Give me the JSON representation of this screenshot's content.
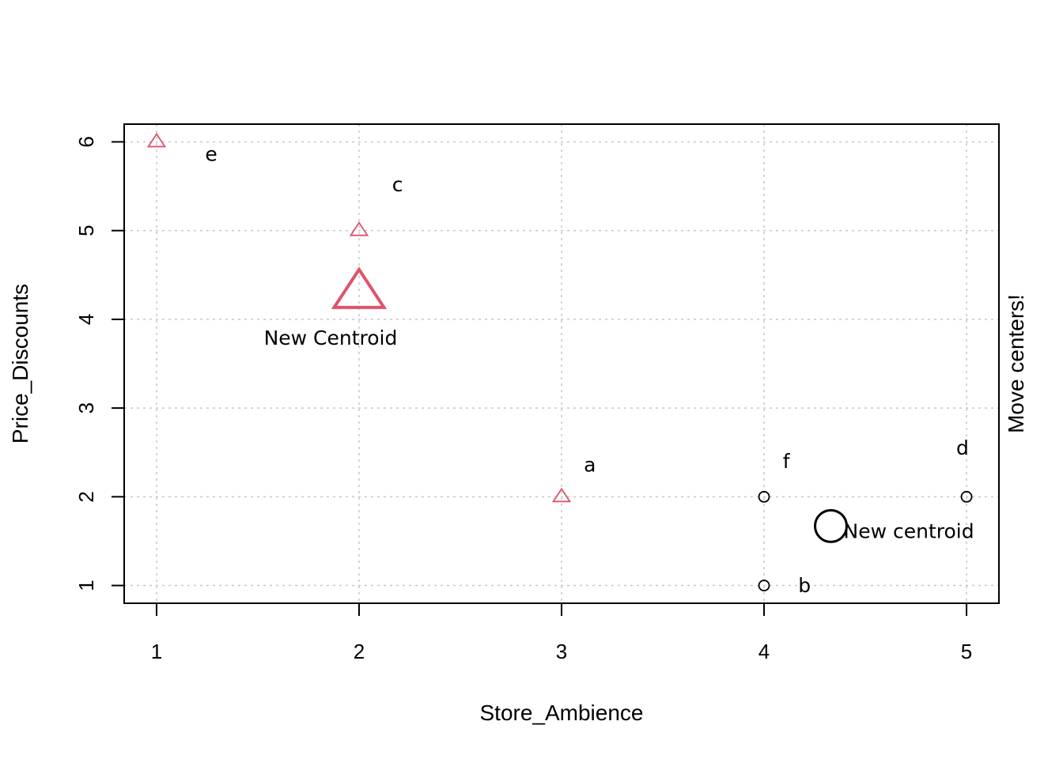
{
  "chart_data": {
    "type": "scatter",
    "title": "",
    "xlabel": "Store_Ambience",
    "ylabel": "Price_Discounts",
    "side_label": "Move centers!",
    "xlim": [
      0.84,
      5.16
    ],
    "ylim": [
      0.8,
      6.2
    ],
    "xticks": [
      "1",
      "2",
      "3",
      "4",
      "5"
    ],
    "yticks": [
      "1",
      "2",
      "3",
      "4",
      "5",
      "6"
    ],
    "grid": true,
    "colors": {
      "cluster_triangle": "#DF536B",
      "cluster_circle": "#000000",
      "grid": "#c8c8c8",
      "frame": "#000000"
    },
    "series": [
      {
        "marker": "triangle",
        "color": "#DF536B",
        "points": [
          {
            "x": 1,
            "y": 6
          },
          {
            "x": 2,
            "y": 5
          },
          {
            "x": 3,
            "y": 2
          }
        ]
      },
      {
        "marker": "circle",
        "color": "#000000",
        "points": [
          {
            "x": 4,
            "y": 2
          },
          {
            "x": 4,
            "y": 1
          },
          {
            "x": 5,
            "y": 2
          }
        ]
      }
    ],
    "centroids": [
      {
        "marker": "triangle",
        "color": "#DF536B",
        "x": 2,
        "y": 4.33,
        "label": "New Centroid"
      },
      {
        "marker": "circle",
        "color": "#000000",
        "x": 4.33,
        "y": 1.67,
        "label": "New centroid"
      }
    ],
    "point_labels": [
      {
        "text": "e",
        "x": 1.27,
        "y": 5.86
      },
      {
        "text": "c",
        "x": 2.19,
        "y": 5.52
      },
      {
        "text": "a",
        "x": 3.14,
        "y": 2.36
      },
      {
        "text": "f",
        "x": 4.11,
        "y": 2.4
      },
      {
        "text": "d",
        "x": 4.98,
        "y": 2.55
      },
      {
        "text": "b",
        "x": 4.2,
        "y": 1.0
      }
    ]
  }
}
